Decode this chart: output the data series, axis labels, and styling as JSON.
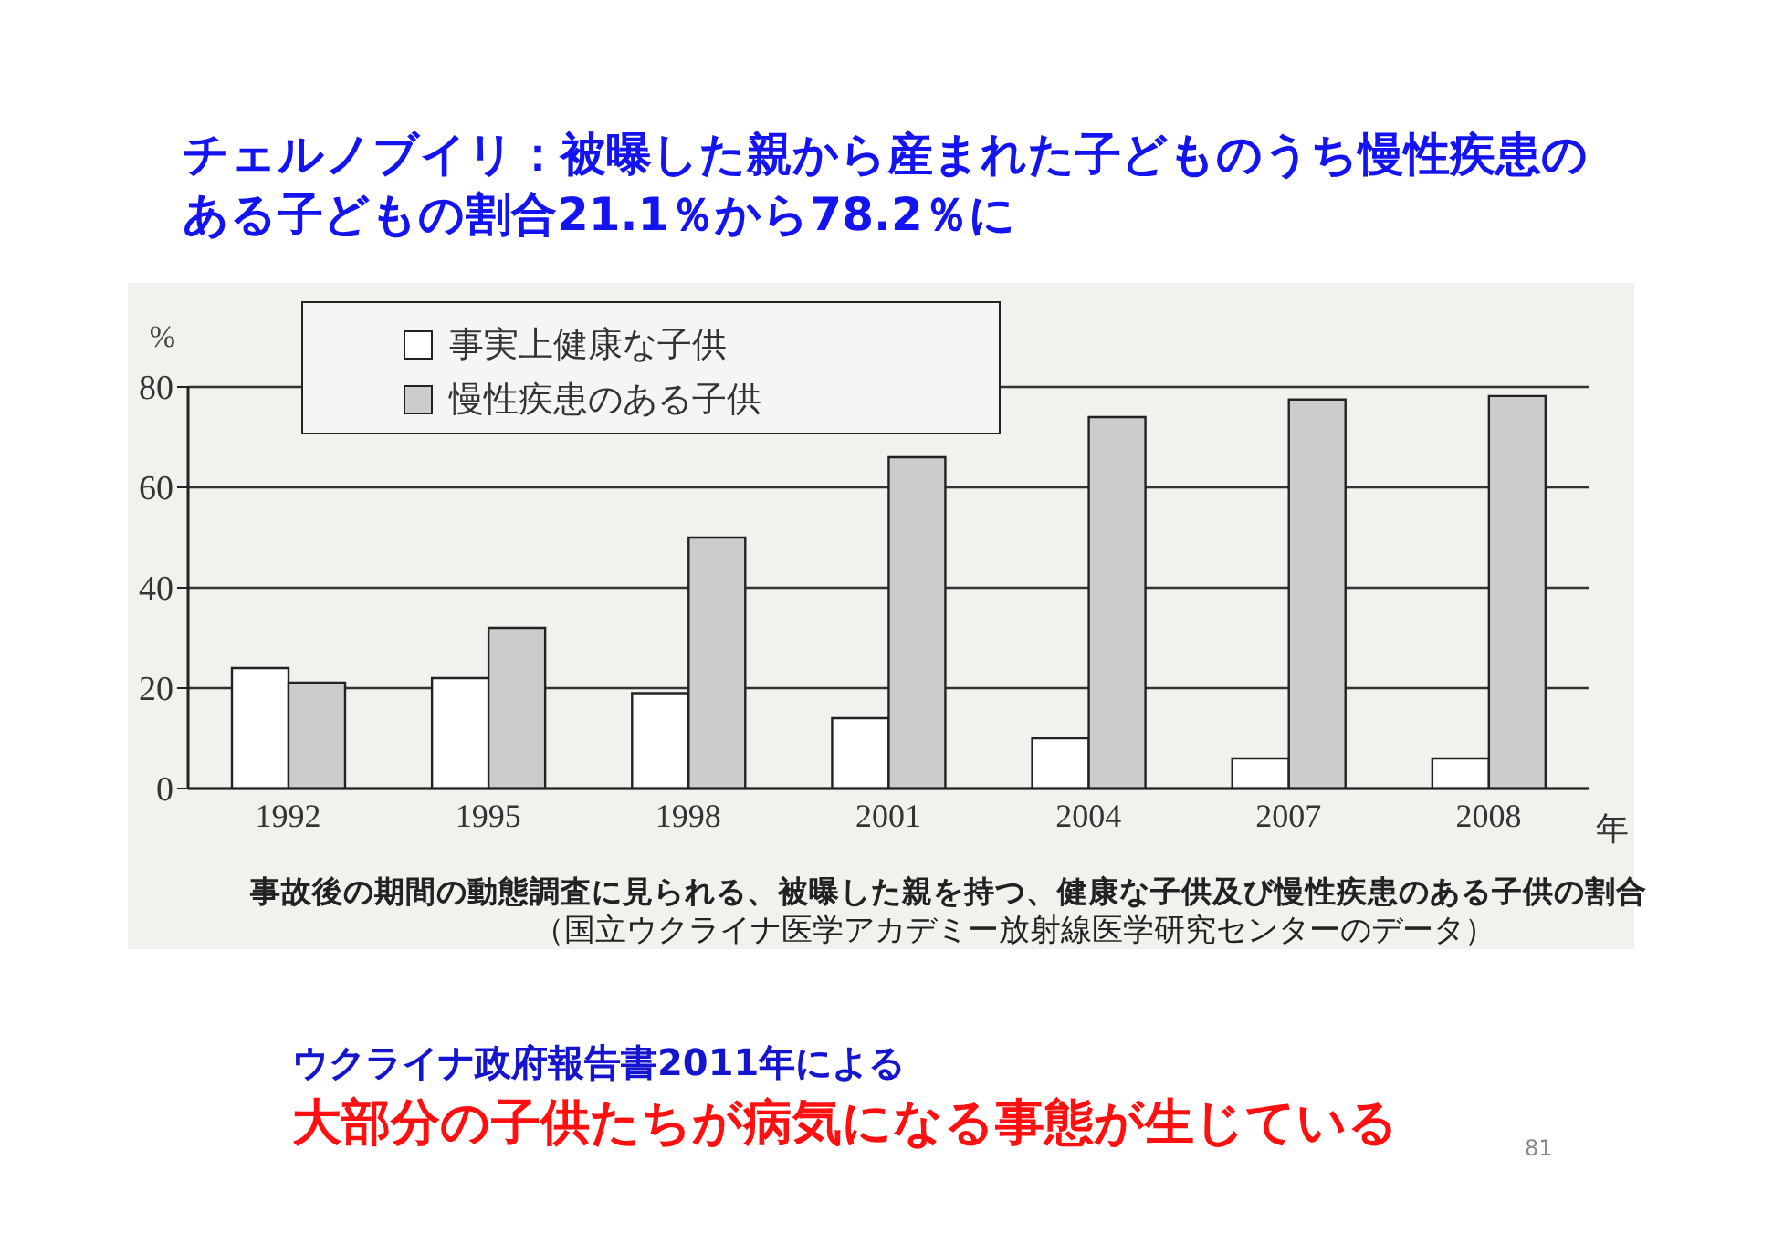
{
  "chart_data": {
    "type": "bar",
    "title": "チェルノブイリ：被曝した親から産まれた子どものうち慢性疾患のある子どもの割合21.1％から78.2％に",
    "xlabel": "年",
    "ylabel": "%",
    "categories": [
      "1992",
      "1995",
      "1998",
      "2001",
      "2004",
      "2007",
      "2008"
    ],
    "series": [
      {
        "name": "事実上健康な子供",
        "color": "#ffffff",
        "values": [
          24,
          22,
          19,
          14,
          10,
          6,
          6
        ]
      },
      {
        "name": "慢性疾患のある子供",
        "color": "#cccccc",
        "values": [
          21.1,
          32,
          50,
          66,
          74,
          77.5,
          78.2
        ]
      }
    ],
    "ylim": [
      0,
      80
    ],
    "yticks": [
      0,
      20,
      40,
      60,
      80
    ],
    "grid": "y",
    "legend": "top left",
    "annotations": [
      "事故後の期間の動態調査に見られる、被曝した親を持つ、健康な子供及び慢性疾患のある子供の割合",
      "（国立ウクライナ医学アカデミー放射線医学研究センターのデータ）",
      "ウクライナ政府報告書2011年による",
      "大部分の子供たちが病気になる事態が生じている",
      "81"
    ]
  }
}
